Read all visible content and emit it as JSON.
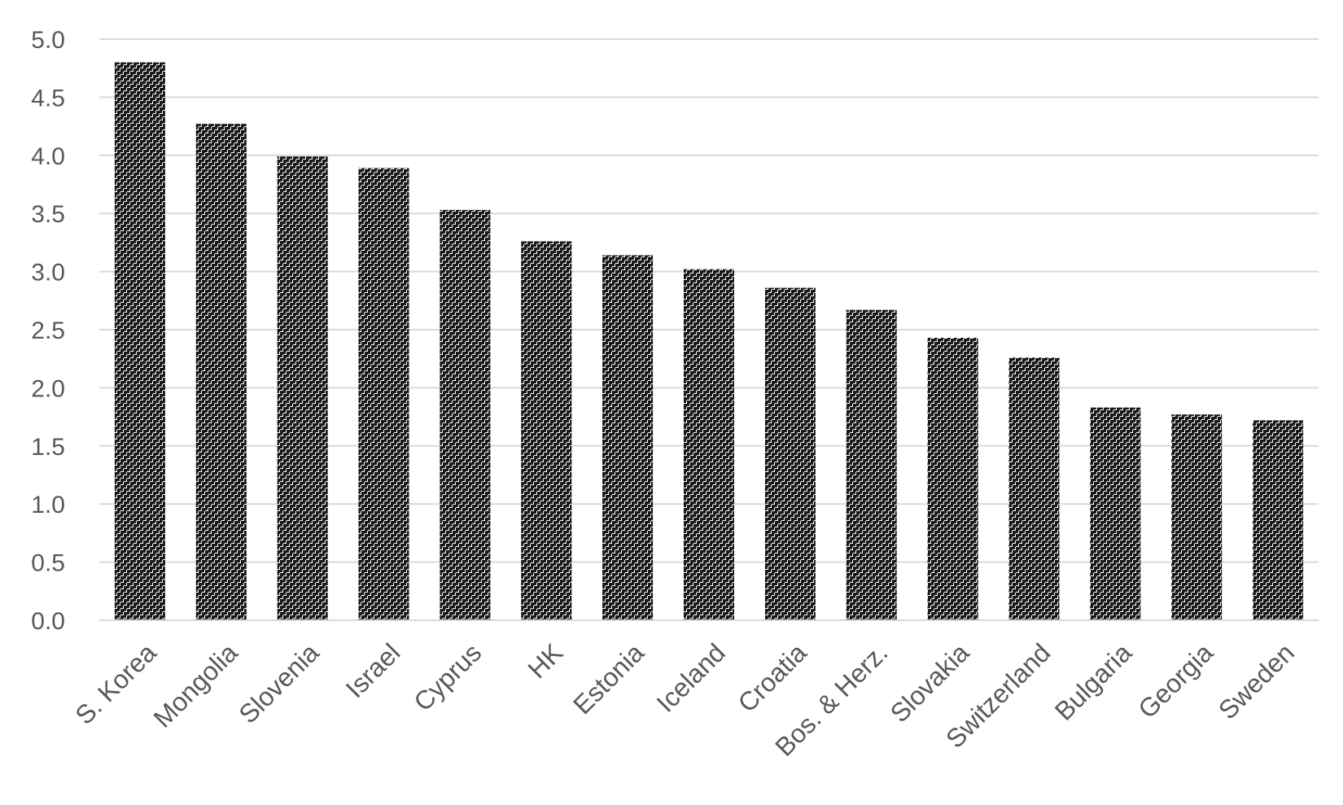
{
  "chart_data": {
    "type": "bar",
    "title": "",
    "xlabel": "",
    "ylabel": "",
    "categories": [
      "S. Korea",
      "Mongolia",
      "Slovenia",
      "Israel",
      "Cyprus",
      "HK",
      "Estonia",
      "Iceland",
      "Croatia",
      "Bos. & Herz.",
      "Slovakia",
      "Switzerland",
      "Bulgaria",
      "Georgia",
      "Sweden"
    ],
    "values": [
      4.8,
      4.27,
      3.99,
      3.89,
      3.53,
      3.26,
      3.14,
      3.02,
      2.86,
      2.67,
      2.43,
      2.26,
      1.83,
      1.77,
      1.72
    ],
    "ylim": [
      0,
      5
    ],
    "yticks": [
      "0.0",
      "0.5",
      "1.0",
      "1.5",
      "2.0",
      "2.5",
      "3.0",
      "3.5",
      "4.0",
      "4.5",
      "5.0"
    ],
    "grid": true,
    "legend": "none",
    "bar_pattern": "dark-checker",
    "colors": {
      "bar_dark": "#1a1a1a",
      "bar_light": "#ffffff",
      "grid": "#d9d9d9",
      "text": "#595959"
    }
  }
}
